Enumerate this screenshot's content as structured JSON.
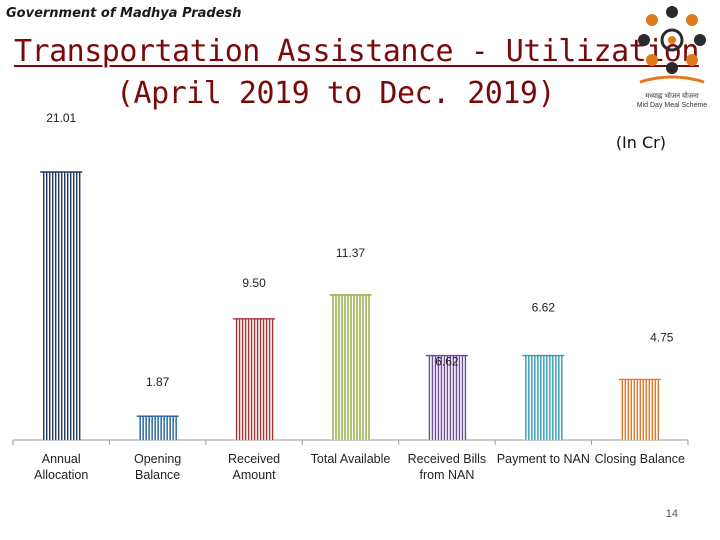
{
  "header": {
    "org": "Government of Madhya Pradesh",
    "title": "Transportation Assistance - Utilization",
    "subtitle": "(April 2019 to Dec. 2019)",
    "unit": "(In Cr)",
    "logo_text_hindi": "मध्याह्न भोजन योजना",
    "logo_text": "Mid Day Meal Scheme"
  },
  "footer": {
    "page": "14"
  },
  "chart_data": {
    "type": "bar",
    "title": "Transportation Assistance - Utilization",
    "subtitle": "(April 2019 to Dec. 2019)",
    "unit": "(In Cr)",
    "categories": [
      [
        "Annual",
        "Allocation"
      ],
      [
        "Opening",
        "Balance"
      ],
      [
        "Received",
        "Amount"
      ],
      [
        "Total Available"
      ],
      [
        "Received Bills",
        "from NAN"
      ],
      [
        "Payment to NAN"
      ],
      [
        "Closing Balance"
      ]
    ],
    "values": [
      21.01,
      1.87,
      9.5,
      11.37,
      6.62,
      6.62,
      4.75
    ],
    "data_labels": [
      "21.01",
      "1.87",
      "9.50",
      "11.37",
      "6.62",
      "6.62",
      "4.75"
    ],
    "colors": [
      "#1f3864",
      "#1f5f99",
      "#a83232",
      "#8faa3c",
      "#6b4a9b",
      "#2a9bb8",
      "#e0782a"
    ],
    "ylim": [
      0,
      21.01
    ],
    "grid": false,
    "legend": "none"
  }
}
